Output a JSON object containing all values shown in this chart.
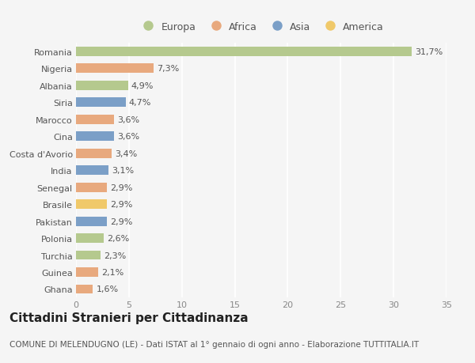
{
  "countries": [
    "Romania",
    "Nigeria",
    "Albania",
    "Siria",
    "Marocco",
    "Cina",
    "Costa d'Avorio",
    "India",
    "Senegal",
    "Brasile",
    "Pakistan",
    "Polonia",
    "Turchia",
    "Guinea",
    "Ghana"
  ],
  "values": [
    31.7,
    7.3,
    4.9,
    4.7,
    3.6,
    3.6,
    3.4,
    3.1,
    2.9,
    2.9,
    2.9,
    2.6,
    2.3,
    2.1,
    1.6
  ],
  "labels": [
    "31,7%",
    "7,3%",
    "4,9%",
    "4,7%",
    "3,6%",
    "3,6%",
    "3,4%",
    "3,1%",
    "2,9%",
    "2,9%",
    "2,9%",
    "2,6%",
    "2,3%",
    "2,1%",
    "1,6%"
  ],
  "continents": [
    "Europa",
    "Africa",
    "Europa",
    "Asia",
    "Africa",
    "Asia",
    "Africa",
    "Asia",
    "Africa",
    "America",
    "Asia",
    "Europa",
    "Europa",
    "Africa",
    "Africa"
  ],
  "continent_colors": {
    "Europa": "#b5c98e",
    "Africa": "#e8a97e",
    "Asia": "#7b9fc7",
    "America": "#f0c96a"
  },
  "legend_order": [
    "Europa",
    "Africa",
    "Asia",
    "America"
  ],
  "title": "Cittadini Stranieri per Cittadinanza",
  "subtitle": "COMUNE DI MELENDUGNO (LE) - Dati ISTAT al 1° gennaio di ogni anno - Elaborazione TUTTITALIA.IT",
  "xlim": [
    0,
    35
  ],
  "xticks": [
    0,
    5,
    10,
    15,
    20,
    25,
    30,
    35
  ],
  "background_color": "#f5f5f5",
  "grid_color": "#ffffff",
  "bar_height": 0.55,
  "title_fontsize": 11,
  "subtitle_fontsize": 7.5,
  "label_fontsize": 8,
  "tick_fontsize": 8,
  "legend_fontsize": 9
}
